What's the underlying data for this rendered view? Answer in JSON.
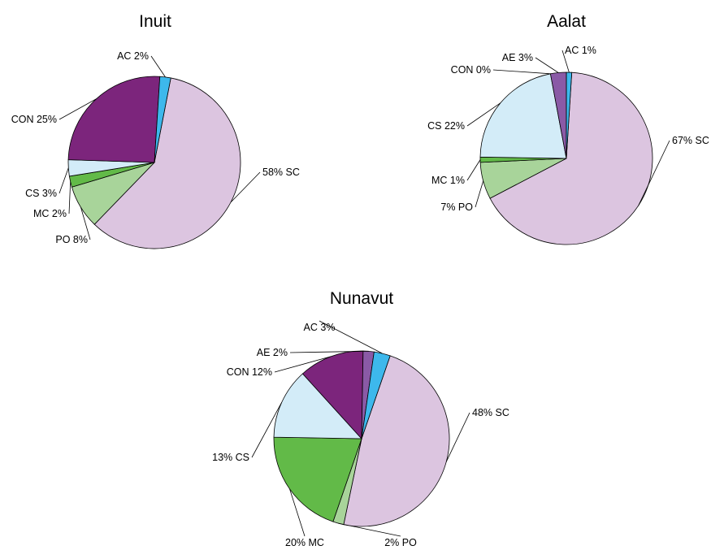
{
  "colors": {
    "SC": "#dcc5e0",
    "PO": "#a8d49a",
    "MC": "#62ba48",
    "CS": "#d3ecf8",
    "CON": "#7c257c",
    "AE": "#8a5aa6",
    "AC": "#3db8ec"
  },
  "chart_data": [
    {
      "type": "pie",
      "title": "Inuit",
      "slices": [
        {
          "code": "SC",
          "value": 58,
          "label": "58% SC"
        },
        {
          "code": "PO",
          "value": 8,
          "label": "PO 8%"
        },
        {
          "code": "MC",
          "value": 2,
          "label": "MC 2%"
        },
        {
          "code": "CS",
          "value": 3,
          "label": "CS 3%"
        },
        {
          "code": "CON",
          "value": 25,
          "label": "CON 25%"
        },
        {
          "code": "AC",
          "value": 2,
          "label": "AC 2%"
        }
      ]
    },
    {
      "type": "pie",
      "title": "Aalat",
      "slices": [
        {
          "code": "SC",
          "value": 67,
          "label": "67% SC"
        },
        {
          "code": "PO",
          "value": 7,
          "label": "7% PO"
        },
        {
          "code": "MC",
          "value": 1,
          "label": "MC 1%"
        },
        {
          "code": "CS",
          "value": 22,
          "label": "CS 22%"
        },
        {
          "code": "CON",
          "value": 0,
          "label": "CON 0%"
        },
        {
          "code": "AE",
          "value": 3,
          "label": "AE 3%"
        },
        {
          "code": "AC",
          "value": 1,
          "label": "AC 1%"
        }
      ]
    },
    {
      "type": "pie",
      "title": "Nunavut",
      "slices": [
        {
          "code": "SC",
          "value": 48,
          "label": "48% SC"
        },
        {
          "code": "PO",
          "value": 2,
          "label": "2% PO"
        },
        {
          "code": "MC",
          "value": 20,
          "label": "20% MC"
        },
        {
          "code": "CS",
          "value": 13,
          "label": "13% CS"
        },
        {
          "code": "CON",
          "value": 12,
          "label": "CON 12%"
        },
        {
          "code": "AE",
          "value": 2,
          "label": "AE 2%"
        },
        {
          "code": "AC",
          "value": 3,
          "label": "AC 3%"
        }
      ]
    }
  ]
}
